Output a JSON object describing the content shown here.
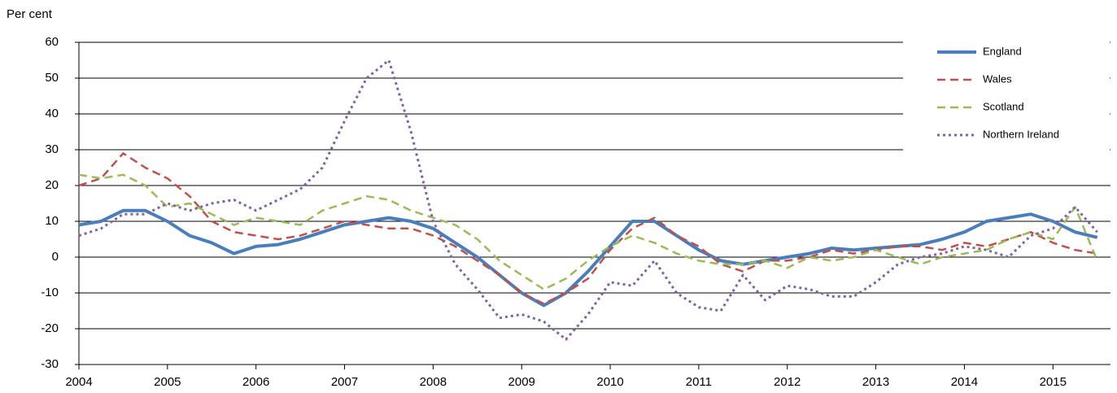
{
  "chart_data": {
    "type": "line",
    "y_label": "Per cent",
    "x": [
      2004,
      2004.25,
      2004.5,
      2004.75,
      2005,
      2005.25,
      2005.5,
      2005.75,
      2006,
      2006.25,
      2006.5,
      2006.75,
      2007,
      2007.25,
      2007.5,
      2007.75,
      2008,
      2008.25,
      2008.5,
      2008.75,
      2009,
      2009.25,
      2009.5,
      2009.75,
      2010,
      2010.25,
      2010.5,
      2010.75,
      2011,
      2011.25,
      2011.5,
      2011.75,
      2012,
      2012.25,
      2012.5,
      2012.75,
      2013,
      2013.25,
      2013.5,
      2013.75,
      2014,
      2014.25,
      2014.5,
      2014.75,
      2015,
      2015.25,
      2015.5
    ],
    "series": [
      {
        "name": "England",
        "color": "#4a7ebb",
        "dash": "solid",
        "values": [
          9,
          10,
          13,
          13,
          10,
          6,
          4,
          1,
          3,
          3.5,
          5,
          7,
          9,
          10,
          11,
          10,
          8,
          4,
          0,
          -5,
          -10,
          -13.5,
          -10,
          -4,
          3,
          10,
          10,
          6,
          2,
          -1,
          -2,
          -1,
          0,
          1,
          2.5,
          2,
          2.5,
          3,
          3.5,
          5,
          7,
          10,
          11,
          12,
          10,
          7,
          5.5
        ]
      },
      {
        "name": "Wales",
        "color": "#c0504d",
        "dash": "dashed",
        "values": [
          20,
          22,
          29,
          25,
          22,
          17,
          10,
          7,
          6,
          5,
          6,
          8,
          10,
          9,
          8,
          8,
          6,
          3,
          -1,
          -5,
          -10,
          -13,
          -10,
          -6,
          2,
          8,
          11,
          6,
          3,
          -2,
          -4,
          -1,
          -1,
          0,
          2,
          1,
          2,
          3,
          3,
          2,
          4,
          3,
          5,
          7,
          4,
          2,
          1
        ]
      },
      {
        "name": "Scotland",
        "color": "#9bbb59",
        "dash": "dashed",
        "values": [
          23,
          22,
          23,
          20,
          14,
          15,
          12,
          9,
          11,
          10,
          9,
          13,
          15,
          17,
          16,
          13,
          11,
          9,
          5,
          -1,
          -5,
          -9,
          -6,
          -1,
          3,
          6,
          4,
          1,
          -1,
          -2,
          -2,
          -1,
          -3,
          0,
          -1,
          0,
          2,
          0,
          -2,
          0,
          1,
          2,
          5,
          7,
          5,
          14,
          -1
        ]
      },
      {
        "name": "Northern Ireland",
        "color": "#8064a2",
        "dash": "dotted",
        "values": [
          6,
          8,
          12,
          12,
          15,
          13,
          15,
          16,
          13,
          16,
          19,
          25,
          38,
          50,
          55,
          35,
          10,
          -2,
          -9,
          -17,
          -16,
          -18,
          -23,
          -16,
          -7,
          -8,
          -1,
          -10,
          -14,
          -15,
          -5,
          -12,
          -8,
          -9,
          -11,
          -11,
          -7,
          -2,
          0,
          1,
          3,
          2,
          0,
          6,
          8,
          14,
          7
        ]
      }
    ],
    "xlim": [
      2004,
      2015.65
    ],
    "xticks": [
      2004,
      2005,
      2006,
      2007,
      2008,
      2009,
      2010,
      2011,
      2012,
      2013,
      2014,
      2015
    ],
    "ylim": [
      -30,
      60
    ],
    "yticks": [
      -30,
      -20,
      -10,
      0,
      10,
      20,
      30,
      40,
      50,
      60
    ],
    "grid": true,
    "legend": "top-right"
  }
}
